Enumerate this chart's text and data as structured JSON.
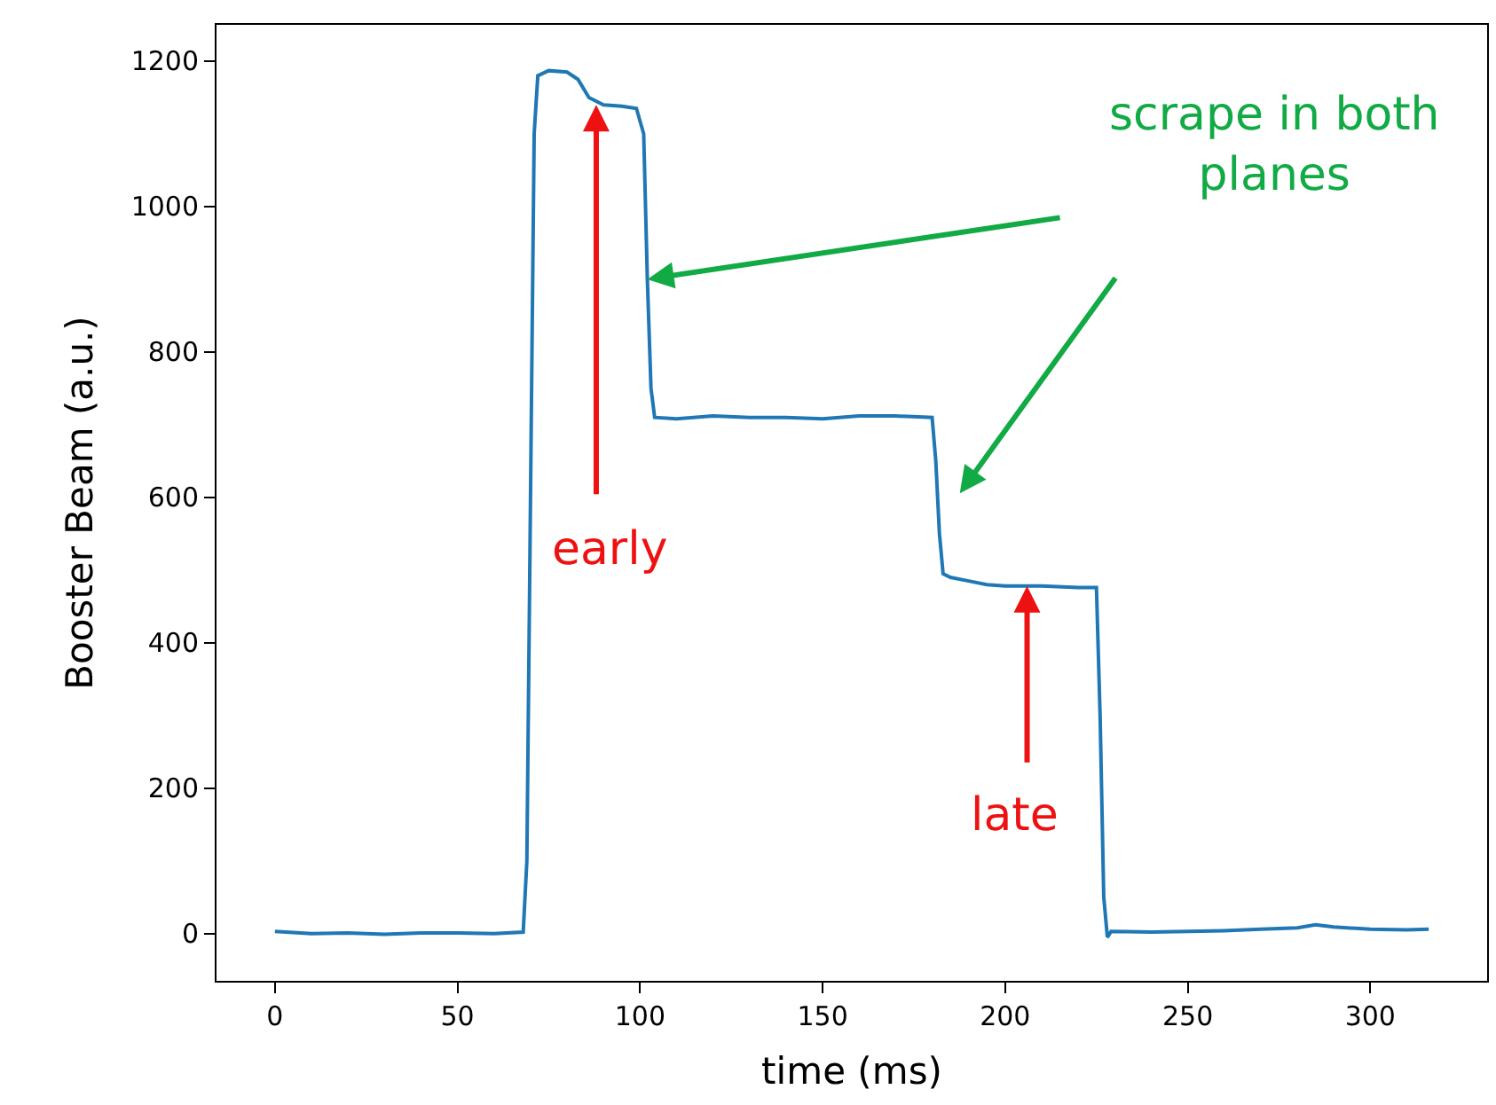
{
  "chart_data": {
    "type": "line",
    "xlabel": "time (ms)",
    "ylabel": "Booster Beam (a.u.)",
    "x": [
      0,
      10,
      20,
      30,
      40,
      50,
      60,
      68,
      69,
      70,
      71,
      72,
      75,
      80,
      83,
      86,
      90,
      95,
      99,
      101,
      102,
      103,
      104,
      110,
      120,
      130,
      140,
      150,
      160,
      170,
      180,
      181,
      182,
      183,
      185,
      190,
      195,
      200,
      210,
      220,
      225,
      226,
      227,
      228,
      229,
      240,
      250,
      260,
      270,
      280,
      285,
      290,
      300,
      310,
      316
    ],
    "series": [
      {
        "color": "#1f77b4",
        "values": [
          3,
          0,
          1,
          -1,
          1,
          1,
          0,
          2,
          100,
          600,
          1100,
          1180,
          1187,
          1185,
          1175,
          1150,
          1140,
          1138,
          1135,
          1100,
          900,
          750,
          710,
          708,
          712,
          710,
          710,
          708,
          712,
          712,
          710,
          650,
          550,
          495,
          490,
          485,
          480,
          478,
          478,
          476,
          476,
          300,
          50,
          -5,
          3,
          2,
          3,
          4,
          6,
          8,
          12,
          9,
          6,
          5,
          6
        ]
      }
    ],
    "xlim": [
      -16,
      332
    ],
    "ylim": [
      -65,
      1250
    ],
    "xticks": [
      0,
      50,
      100,
      150,
      200,
      250,
      300
    ],
    "yticks": [
      0,
      200,
      400,
      600,
      800,
      1000,
      1200
    ],
    "marker": "none",
    "line_style": "solid",
    "annotations": [
      {
        "text": "early",
        "x": 88,
        "y": 1140
      },
      {
        "text": "late",
        "x": 206,
        "y": 478
      },
      {
        "text": "scrape in both\nplanes",
        "x": 102,
        "y": 900
      }
    ]
  }
}
